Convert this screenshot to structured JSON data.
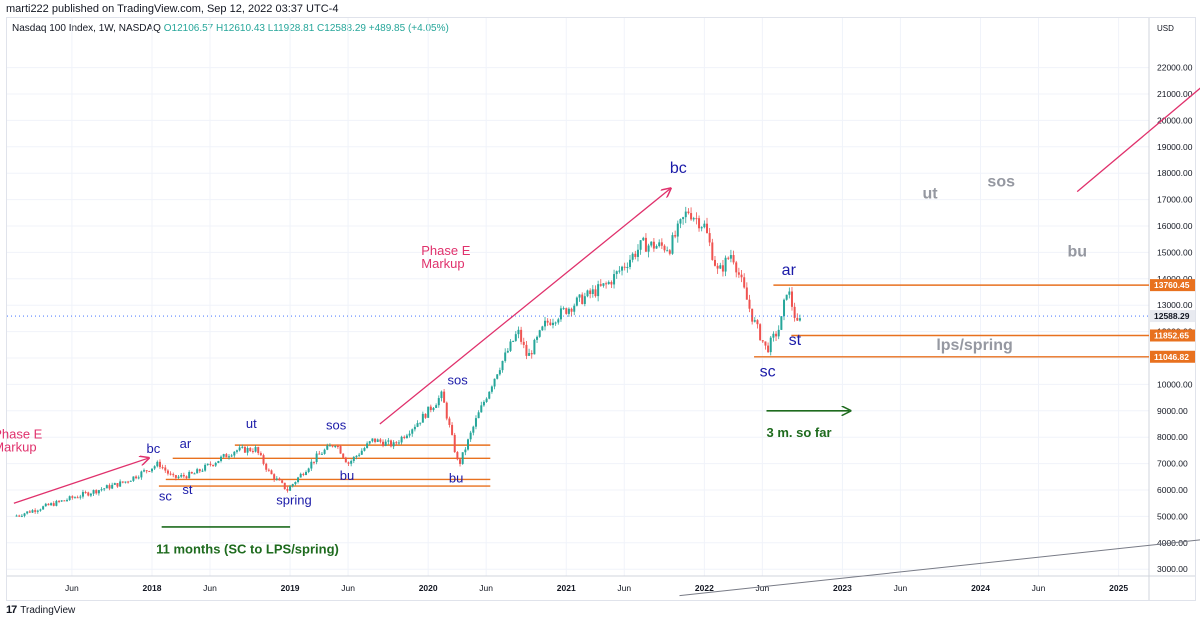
{
  "header": {
    "text": "marti222 published on TradingView.com, Sep 12, 2022 03:37 UTC-4"
  },
  "symbol_line": {
    "name": "Nasdaq 100 Index, 1W, NASDAQ",
    "ohlc": "O12106.57  H12610.43  L11928.81  C12588.29  +489.85 (+4.05%)"
  },
  "footer": {
    "brand": "TradingView"
  },
  "colors": {
    "up": "#26a69a",
    "down": "#ef5350",
    "level": "#e8711f",
    "pink": "#e0316c",
    "blue": "#1a1aa8",
    "green": "#1e6b1e",
    "gray": "#9598a1",
    "last": "#2962ff"
  },
  "chart_data": {
    "type": "candlestick",
    "title": "Nasdaq 100 Index, 1W, NASDAQ",
    "currency": "USD",
    "ylim": [
      2000,
      23500
    ],
    "y_ticks": [
      3000,
      4000,
      5000,
      6000,
      7000,
      8000,
      9000,
      10000,
      11000,
      12000,
      13000,
      14000,
      15000,
      16000,
      17000,
      18000,
      19000,
      20000,
      21000,
      22000
    ],
    "y_tick_labels": [
      "3000.00",
      "4000.00",
      "5000.00",
      "6000.00",
      "7000.00",
      "8000.00",
      "9000.00",
      "10000.00",
      "11000.00",
      "12000.00",
      "13000.00",
      "14000.00",
      "15000.00",
      "16000.00",
      "17000.00",
      "18000.00",
      "19000.00",
      "20000.00",
      "21000.00",
      "22000.00"
    ],
    "x_ticks": [
      {
        "t": 2017.42,
        "label": "Jun"
      },
      {
        "t": 2018.0,
        "label": "2018"
      },
      {
        "t": 2018.42,
        "label": "Jun"
      },
      {
        "t": 2019.0,
        "label": "2019"
      },
      {
        "t": 2019.42,
        "label": "Jun"
      },
      {
        "t": 2020.0,
        "label": "2020"
      },
      {
        "t": 2020.42,
        "label": "Jun"
      },
      {
        "t": 2021.0,
        "label": "2021"
      },
      {
        "t": 2021.42,
        "label": "Jun"
      },
      {
        "t": 2022.0,
        "label": "2022"
      },
      {
        "t": 2022.42,
        "label": "Jun"
      },
      {
        "t": 2023.0,
        "label": "2023"
      },
      {
        "t": 2023.42,
        "label": "Jun"
      },
      {
        "t": 2024.0,
        "label": "2024"
      },
      {
        "t": 2024.42,
        "label": "Jun"
      },
      {
        "t": 2025.0,
        "label": "2025"
      }
    ],
    "price_path": [
      [
        2017.0,
        5000
      ],
      [
        2017.42,
        5700
      ],
      [
        2017.8,
        6300
      ],
      [
        2018.05,
        7000
      ],
      [
        2018.15,
        6450
      ],
      [
        2018.3,
        6600
      ],
      [
        2018.6,
        7500
      ],
      [
        2018.75,
        7550
      ],
      [
        2018.85,
        6650
      ],
      [
        2018.98,
        6000
      ],
      [
        2019.2,
        7300
      ],
      [
        2019.33,
        7800
      ],
      [
        2019.42,
        7000
      ],
      [
        2019.6,
        7900
      ],
      [
        2019.75,
        7700
      ],
      [
        2019.95,
        8700
      ],
      [
        2020.1,
        9600
      ],
      [
        2020.22,
        6900
      ],
      [
        2020.35,
        8700
      ],
      [
        2020.5,
        10500
      ],
      [
        2020.65,
        12000
      ],
      [
        2020.72,
        11000
      ],
      [
        2020.85,
        12300
      ],
      [
        2021.1,
        13200
      ],
      [
        2021.3,
        13800
      ],
      [
        2021.55,
        15300
      ],
      [
        2021.75,
        15200
      ],
      [
        2021.88,
        16600
      ],
      [
        2022.0,
        16000
      ],
      [
        2022.1,
        14200
      ],
      [
        2022.2,
        15000
      ],
      [
        2022.35,
        12500
      ],
      [
        2022.45,
        11300
      ],
      [
        2022.55,
        12200
      ],
      [
        2022.6,
        13700
      ],
      [
        2022.68,
        12100
      ],
      [
        2022.7,
        12588
      ]
    ],
    "price_labels": [
      {
        "value": 13760.45,
        "label": "13760.45",
        "kind": "level"
      },
      {
        "value": 12588.29,
        "label": "12588.29",
        "kind": "last"
      },
      {
        "value": 11852.65,
        "label": "11852.65",
        "kind": "level"
      },
      {
        "value": 11046.82,
        "label": "11046.82",
        "kind": "level"
      }
    ],
    "levels": [
      {
        "value": 13760.45,
        "from": 2022.5,
        "to": 2025.8
      },
      {
        "value": 11852.65,
        "from": 2022.63,
        "to": 2025.8
      },
      {
        "value": 11046.82,
        "from": 2022.36,
        "to": 2025.8
      },
      {
        "value": 7700,
        "from": 2018.6,
        "to": 2020.45
      },
      {
        "value": 7200,
        "from": 2018.15,
        "to": 2020.45
      },
      {
        "value": 6400,
        "from": 2018.1,
        "to": 2020.45
      },
      {
        "value": 6150,
        "from": 2018.05,
        "to": 2020.45
      }
    ],
    "trend_lines": [
      {
        "from": [
          2017.0,
          5500
        ],
        "to": [
          2017.97,
          7200
        ],
        "color": "pink",
        "arrow": true
      },
      {
        "from": [
          2019.65,
          8500
        ],
        "to": [
          2021.75,
          17400
        ],
        "color": "pink",
        "arrow": true
      },
      {
        "from": [
          2024.7,
          17300
        ],
        "to": [
          2025.7,
          21700
        ],
        "color": "pink",
        "arrow": false
      },
      {
        "from": [
          2021.82,
          2000
        ],
        "to": [
          2025.75,
          4200
        ],
        "color": "gray",
        "arrow": false
      }
    ],
    "green_lines": [
      {
        "from": [
          2018.07,
          4600
        ],
        "to": [
          2019.0,
          4600
        ],
        "arrow": false
      },
      {
        "from": [
          2022.45,
          9000
        ],
        "to": [
          2023.05,
          9000
        ],
        "arrow": true
      }
    ],
    "annotations": [
      {
        "text": "Phase E",
        "t": 2016.85,
        "v": 7950,
        "color": "pink",
        "size": 13
      },
      {
        "text": "Markup",
        "t": 2016.85,
        "v": 7450,
        "color": "pink",
        "size": 13
      },
      {
        "text": "Phase E",
        "t": 2019.95,
        "v": 14900,
        "color": "pink",
        "size": 13
      },
      {
        "text": "Markup",
        "t": 2019.95,
        "v": 14400,
        "color": "pink",
        "size": 13
      },
      {
        "text": "bc",
        "t": 2017.96,
        "v": 7400,
        "color": "blue",
        "size": 13
      },
      {
        "text": "ar",
        "t": 2018.2,
        "v": 7600,
        "color": "blue",
        "size": 13
      },
      {
        "text": "sc",
        "t": 2018.05,
        "v": 5600,
        "color": "blue",
        "size": 13
      },
      {
        "text": "st",
        "t": 2018.22,
        "v": 5850,
        "color": "blue",
        "size": 13
      },
      {
        "text": "ut",
        "t": 2018.68,
        "v": 8350,
        "color": "blue",
        "size": 13
      },
      {
        "text": "spring",
        "t": 2018.9,
        "v": 5450,
        "color": "blue",
        "size": 13
      },
      {
        "text": "sos",
        "t": 2019.26,
        "v": 8300,
        "color": "blue",
        "size": 13
      },
      {
        "text": "bu",
        "t": 2019.36,
        "v": 6370,
        "color": "blue",
        "size": 13
      },
      {
        "text": "sos",
        "t": 2020.14,
        "v": 10000,
        "color": "blue",
        "size": 13
      },
      {
        "text": "bu",
        "t": 2020.15,
        "v": 6280,
        "color": "blue",
        "size": 13
      },
      {
        "text": "bc",
        "t": 2021.75,
        "v": 18000,
        "color": "blue",
        "size": 16
      },
      {
        "text": "ar",
        "t": 2022.56,
        "v": 14150,
        "color": "blue",
        "size": 16
      },
      {
        "text": "st",
        "t": 2022.61,
        "v": 11500,
        "color": "blue",
        "size": 16
      },
      {
        "text": "sc",
        "t": 2022.4,
        "v": 10300,
        "color": "blue",
        "size": 16
      },
      {
        "text": "ut",
        "t": 2023.58,
        "v": 17050,
        "color": "gray",
        "size": 16
      },
      {
        "text": "sos",
        "t": 2024.05,
        "v": 17500,
        "color": "gray",
        "size": 16
      },
      {
        "text": "bu",
        "t": 2024.63,
        "v": 14850,
        "color": "gray",
        "size": 16
      },
      {
        "text": "lps/spring",
        "t": 2023.68,
        "v": 11300,
        "color": "gray",
        "size": 16
      },
      {
        "text": "3 m. so far",
        "t": 2022.45,
        "v": 8000,
        "color": "green",
        "size": 13
      },
      {
        "text": "11 months (SC to LPS/spring)",
        "t": 2018.03,
        "v": 3600,
        "color": "green",
        "size": 13
      }
    ]
  }
}
